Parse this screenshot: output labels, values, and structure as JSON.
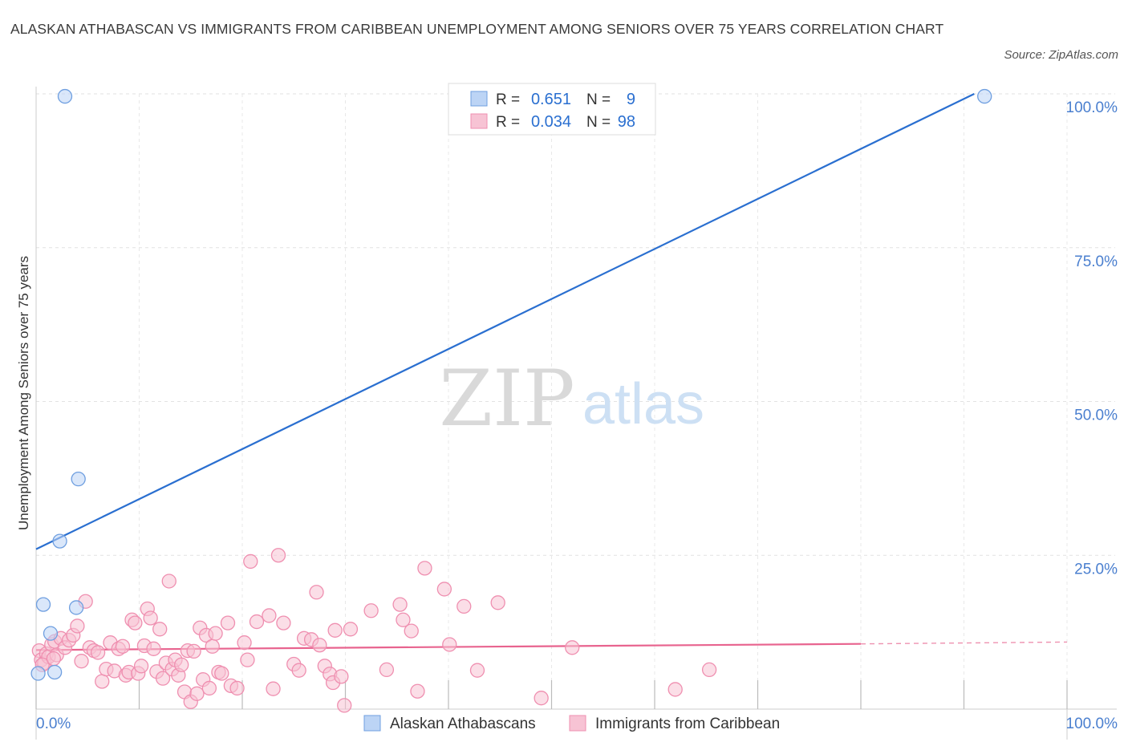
{
  "title": "ALASKAN ATHABASCAN VS IMMIGRANTS FROM CARIBBEAN UNEMPLOYMENT AMONG SENIORS OVER 75 YEARS CORRELATION CHART",
  "source": "Source: ZipAtlas.com",
  "watermark": {
    "zip": "ZIP",
    "atlas": "atlas"
  },
  "legend_box": {
    "rows": [
      {
        "r_label": "R =",
        "r_value": "0.651",
        "n_label": "N =",
        "n_value": "9"
      },
      {
        "r_label": "R =",
        "r_value": "0.034",
        "n_label": "N =",
        "n_value": "98"
      }
    ]
  },
  "chart_data": {
    "type": "scatter",
    "title": "ALASKAN ATHABASCAN VS IMMIGRANTS FROM CARIBBEAN UNEMPLOYMENT AMONG SENIORS OVER 75 YEARS CORRELATION CHART",
    "xlabel": "",
    "ylabel": "Unemployment Among Seniors over 75 years",
    "xlim": [
      0,
      100
    ],
    "ylim": [
      0,
      100
    ],
    "x_tick_labels": [
      "0.0%",
      "100.0%"
    ],
    "y_tick_labels": [
      "100.0%",
      "75.0%",
      "50.0%",
      "25.0%"
    ],
    "y_ticks": [
      100,
      75,
      50,
      25
    ],
    "grid": true,
    "legend_position": "bottom-center",
    "series": [
      {
        "name": "Alaskan Athabascans",
        "color": "#6f9fe0",
        "fill": "#bcd4f5",
        "line_color": "#2a6fd0",
        "points": [
          [
            2.8,
            99.6
          ],
          [
            92.0,
            99.6
          ],
          [
            4.1,
            37.4
          ],
          [
            2.3,
            27.3
          ],
          [
            0.7,
            17.0
          ],
          [
            3.9,
            16.5
          ],
          [
            1.4,
            12.3
          ],
          [
            1.8,
            6.0
          ],
          [
            0.2,
            5.8
          ]
        ],
        "trend": {
          "x": [
            0,
            91
          ],
          "y": [
            26.0,
            100.0
          ],
          "dashed_to": null
        }
      },
      {
        "name": "Immigrants from Caribbean",
        "color": "#ef8fb0",
        "fill": "#f7c3d4",
        "line_color": "#e8648f",
        "points": [
          [
            0.3,
            9.5
          ],
          [
            0.5,
            8.0
          ],
          [
            0.8,
            7.5
          ],
          [
            1.0,
            9.0
          ],
          [
            1.2,
            8.5
          ],
          [
            1.5,
            10.5
          ],
          [
            1.8,
            11.0
          ],
          [
            2.0,
            8.8
          ],
          [
            2.4,
            11.5
          ],
          [
            2.8,
            10.0
          ],
          [
            3.2,
            11.2
          ],
          [
            3.6,
            12.0
          ],
          [
            4.0,
            13.5
          ],
          [
            4.4,
            7.8
          ],
          [
            4.8,
            17.5
          ],
          [
            5.2,
            10.0
          ],
          [
            5.6,
            9.5
          ],
          [
            6.0,
            9.2
          ],
          [
            6.4,
            4.5
          ],
          [
            6.8,
            6.5
          ],
          [
            7.2,
            10.8
          ],
          [
            7.6,
            6.2
          ],
          [
            8.0,
            9.8
          ],
          [
            8.4,
            10.2
          ],
          [
            8.7,
            5.5
          ],
          [
            9.0,
            6.0
          ],
          [
            9.3,
            14.5
          ],
          [
            9.6,
            14.0
          ],
          [
            9.9,
            5.8
          ],
          [
            10.2,
            7.0
          ],
          [
            10.5,
            10.3
          ],
          [
            10.8,
            16.3
          ],
          [
            11.1,
            14.8
          ],
          [
            11.4,
            9.8
          ],
          [
            11.7,
            6.1
          ],
          [
            12.0,
            13.0
          ],
          [
            12.3,
            5.0
          ],
          [
            12.6,
            7.5
          ],
          [
            12.9,
            20.8
          ],
          [
            13.2,
            6.5
          ],
          [
            13.5,
            8.0
          ],
          [
            13.8,
            5.5
          ],
          [
            14.1,
            7.2
          ],
          [
            14.4,
            2.8
          ],
          [
            14.7,
            9.5
          ],
          [
            15.0,
            1.2
          ],
          [
            15.3,
            9.4
          ],
          [
            15.6,
            2.5
          ],
          [
            15.9,
            13.2
          ],
          [
            16.2,
            4.8
          ],
          [
            16.5,
            12.0
          ],
          [
            16.8,
            3.4
          ],
          [
            17.1,
            10.2
          ],
          [
            17.4,
            12.3
          ],
          [
            17.7,
            6.0
          ],
          [
            18.0,
            5.8
          ],
          [
            18.6,
            14.0
          ],
          [
            18.9,
            3.8
          ],
          [
            19.5,
            3.4
          ],
          [
            20.2,
            10.8
          ],
          [
            20.5,
            8.0
          ],
          [
            20.8,
            24.0
          ],
          [
            21.4,
            14.2
          ],
          [
            22.6,
            15.2
          ],
          [
            23.0,
            3.3
          ],
          [
            23.5,
            25.0
          ],
          [
            24.0,
            14.0
          ],
          [
            25.0,
            7.3
          ],
          [
            25.5,
            6.3
          ],
          [
            26.0,
            11.5
          ],
          [
            26.7,
            11.3
          ],
          [
            27.2,
            19.0
          ],
          [
            27.5,
            10.4
          ],
          [
            28.0,
            7.0
          ],
          [
            28.5,
            5.7
          ],
          [
            28.8,
            4.3
          ],
          [
            29.0,
            12.8
          ],
          [
            29.6,
            5.3
          ],
          [
            29.9,
            0.6
          ],
          [
            30.5,
            13.0
          ],
          [
            32.5,
            16.0
          ],
          [
            34.0,
            6.4
          ],
          [
            35.3,
            17.0
          ],
          [
            35.6,
            14.5
          ],
          [
            36.4,
            12.7
          ],
          [
            37.0,
            2.9
          ],
          [
            37.7,
            22.9
          ],
          [
            39.6,
            19.5
          ],
          [
            40.1,
            10.5
          ],
          [
            41.5,
            16.7
          ],
          [
            42.8,
            6.3
          ],
          [
            44.8,
            17.3
          ],
          [
            49.0,
            1.8
          ],
          [
            52.0,
            10.0
          ],
          [
            62.0,
            3.2
          ],
          [
            65.3,
            6.4
          ],
          [
            0.6,
            7.2
          ],
          [
            1.7,
            8.2
          ]
        ],
        "trend": {
          "x": [
            0,
            80
          ],
          "y": [
            9.6,
            10.6
          ],
          "dashed_to": [
            100,
            10.9
          ]
        }
      }
    ]
  }
}
